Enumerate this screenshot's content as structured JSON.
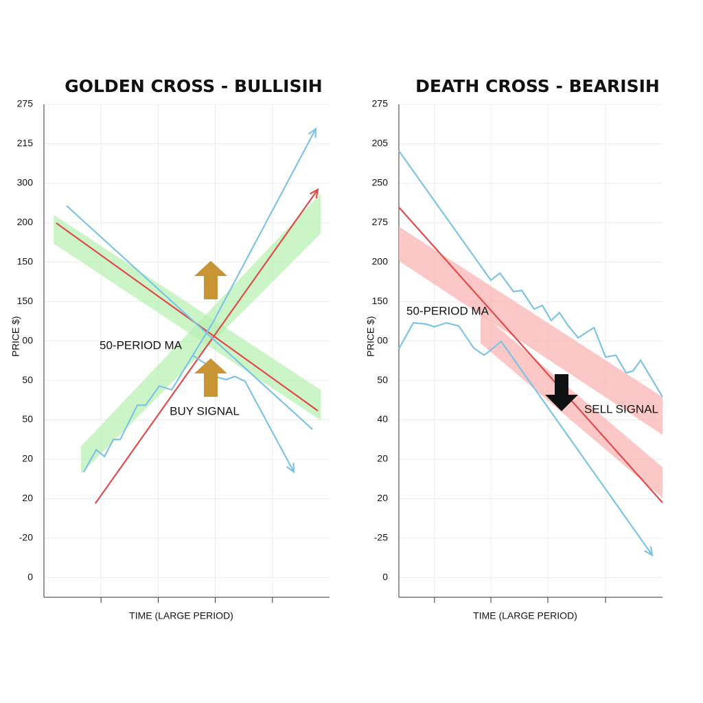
{
  "chart_data": [
    {
      "type": "line",
      "title": "GOLDEN CROSS - BULLISIH",
      "ylabel": "PRICE $)",
      "xlabel": "TIME (LARGE PERIOD)",
      "xlim": [
        0,
        100
      ],
      "xticks": [
        20,
        40,
        60,
        80
      ],
      "ylim": [
        -0.5,
        12
      ],
      "grid": true,
      "yticks": [
        {
          "value": 0,
          "label": "0"
        },
        {
          "value": 1,
          "label": "-20"
        },
        {
          "value": 2,
          "label": "20"
        },
        {
          "value": 3,
          "label": "20"
        },
        {
          "value": 4,
          "label": "50"
        },
        {
          "value": 5,
          "label": "50"
        },
        {
          "value": 6,
          "label": "00"
        },
        {
          "value": 7,
          "label": "150"
        },
        {
          "value": 8,
          "label": "150"
        },
        {
          "value": 9,
          "label": "200"
        },
        {
          "value": 10,
          "label": "300"
        },
        {
          "value": 11,
          "label": "215"
        },
        {
          "value": 12,
          "label": "275"
        }
      ],
      "bands": [
        {
          "color": "#b9f0b4",
          "x": [
            3.4,
            96.9
          ],
          "upper": [
            9.2,
            4.76
          ],
          "lower": [
            8.47,
            3.99
          ]
        },
        {
          "color": "#b9f0b4",
          "x": [
            13.0,
            96.9
          ],
          "upper": [
            3.33,
            9.74
          ],
          "lower": [
            2.63,
            8.73
          ]
        }
      ],
      "series": [
        {
          "color": "#e04a4a",
          "arrow": false,
          "x": [
            4.3,
            95.9
          ],
          "values": [
            8.99,
            4.23
          ]
        },
        {
          "color": "#e04a4a",
          "arrow": true,
          "x": [
            18.0,
            95.9
          ],
          "values": [
            1.88,
            9.84
          ]
        },
        {
          "color": "#7cc3e6",
          "arrow": false,
          "x": [
            7.9,
            94.0
          ],
          "values": [
            9.43,
            3.76
          ]
        },
        {
          "color": "#7cc3e6",
          "arrow": true,
          "x": [
            13.9,
            18.3,
            21.2,
            24.3,
            26.7,
            32.7,
            35.6,
            40.4,
            44.7,
            59.1,
            95.2
          ],
          "values": [
            2.67,
            3.24,
            3.07,
            3.5,
            3.5,
            4.37,
            4.37,
            4.86,
            4.76,
            6.46,
            11.38
          ]
        },
        {
          "color": "#7cc3e6",
          "arrow": true,
          "x": [
            51.9,
            56.7,
            61.1,
            63.9,
            66.8,
            70.4,
            87.5
          ],
          "values": [
            5.64,
            5.42,
            5.07,
            5.02,
            5.1,
            4.98,
            2.68
          ]
        }
      ],
      "annotations": [
        "50-PERIOD MA",
        "BUY SIGNAL"
      ]
    },
    {
      "type": "line",
      "title": "DEATH CROSS - BEARISIH",
      "ylabel": "PRICE $)",
      "xlabel": "TIME (LARGE PERIOD)",
      "xlim": [
        0,
        100
      ],
      "xticks": [
        13.5,
        34.9,
        56.5,
        78.4
      ],
      "ylim": [
        -0.5,
        12
      ],
      "grid": true,
      "yticks": [
        {
          "value": 0,
          "label": "0"
        },
        {
          "value": 1,
          "label": "-25"
        },
        {
          "value": 2,
          "label": "20"
        },
        {
          "value": 3,
          "label": "20"
        },
        {
          "value": 4,
          "label": "40"
        },
        {
          "value": 5,
          "label": "50"
        },
        {
          "value": 6,
          "label": "00"
        },
        {
          "value": 7,
          "label": "150"
        },
        {
          "value": 8,
          "label": "200"
        },
        {
          "value": 9,
          "label": "275"
        },
        {
          "value": 10,
          "label": "250"
        },
        {
          "value": 11,
          "label": "205"
        },
        {
          "value": 12,
          "label": "275"
        }
      ],
      "bands": [
        {
          "color": "#fbb4b4",
          "x": [
            0,
            100
          ],
          "upper": [
            8.9,
            4.58
          ],
          "lower": [
            8.03,
            3.62
          ]
        },
        {
          "color": "#fbb4b4",
          "x": [
            31,
            100
          ],
          "upper": [
            6.72,
            2.8
          ],
          "lower": [
            5.94,
            2.02
          ]
        }
      ],
      "series": [
        {
          "color": "#7cc3e6",
          "arrow": false,
          "x": [
            0,
            34.9,
            38.3,
            43.5,
            46.6,
            51.3,
            54.4,
            57.8,
            60.9,
            64.3,
            68,
            74,
            78.4,
            82.3,
            86.2,
            88.8,
            91.7,
            100
          ],
          "values": [
            10.82,
            7.54,
            7.72,
            7.25,
            7.28,
            6.81,
            6.9,
            6.52,
            6.72,
            6.38,
            6.08,
            6.34,
            5.59,
            5.64,
            5.19,
            5.24,
            5.51,
            4.58
          ]
        },
        {
          "color": "#e04a4a",
          "arrow": false,
          "x": [
            0,
            100
          ],
          "values": [
            9.39,
            1.9
          ]
        },
        {
          "color": "#7cc3e6",
          "arrow": true,
          "x": [
            0,
            5.5,
            10.2,
            13.5,
            18,
            22.7,
            28.4,
            32.3,
            34.9,
            38.8,
            96.1
          ],
          "values": [
            5.8,
            6.46,
            6.43,
            6.36,
            6.46,
            6.38,
            5.82,
            5.64,
            5.77,
            5.99,
            0.57
          ]
        }
      ],
      "annotations": [
        "50-PERIOD MA",
        "SELL SIGNAL"
      ]
    }
  ]
}
